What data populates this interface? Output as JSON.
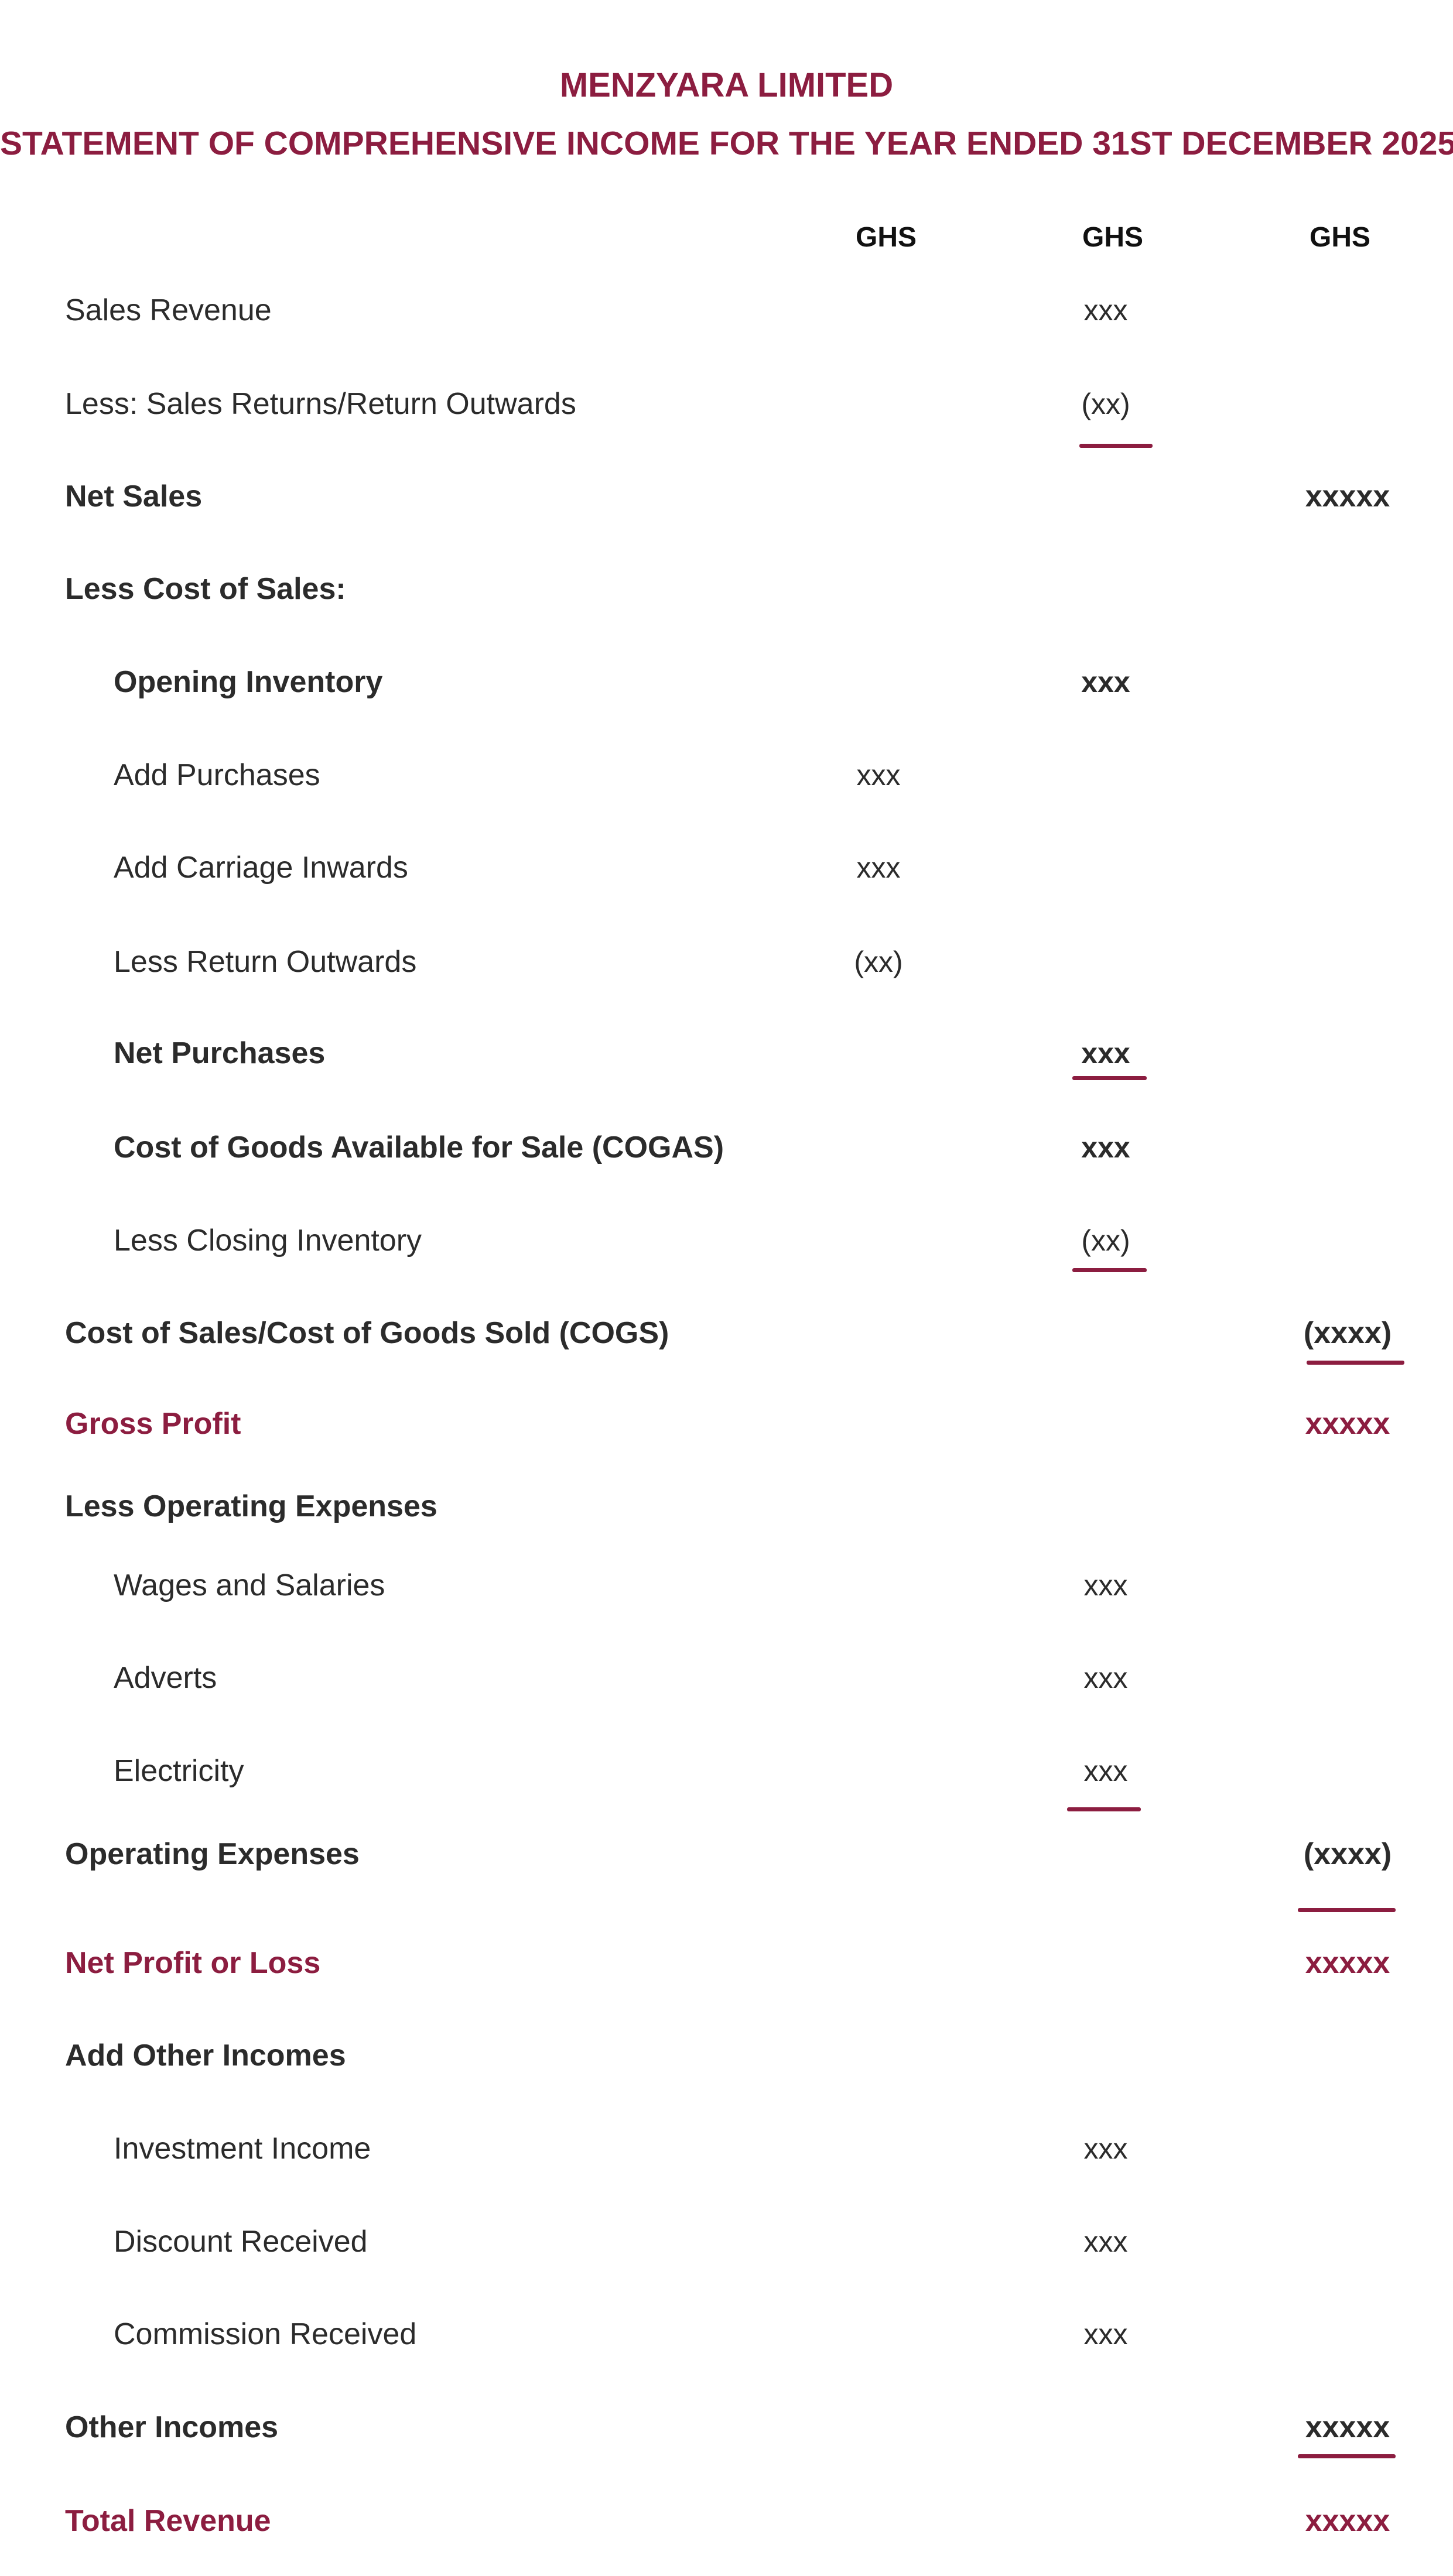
{
  "header": {
    "company": "MENZYARA LIMITED",
    "statement": "STATEMENT OF COMPREHENSIVE INCOME FOR THE YEAR ENDED 31ST DECEMBER 2025",
    "columns": [
      "GHS",
      "GHS",
      "GHS"
    ]
  },
  "colors": {
    "accent": "#8c1d40",
    "text": "#2b2b2b"
  },
  "rows": [
    {
      "label": "Sales Revenue",
      "col2": "xxx"
    },
    {
      "label": "Less: Sales Returns/Return Outwards",
      "col2": "(xx)"
    },
    {
      "label": "Net Sales",
      "col3": "xxxxx"
    },
    {
      "label": "Less Cost of Sales:"
    },
    {
      "label": "Opening Inventory",
      "col2": "xxx"
    },
    {
      "label": "Add Purchases",
      "col1": "xxx"
    },
    {
      "label": "Add Carriage Inwards",
      "col1": "xxx"
    },
    {
      "label": "Less Return Outwards",
      "col1": "(xx)"
    },
    {
      "label": "Net Purchases",
      "col2": "xxx"
    },
    {
      "label": "Cost of Goods Available for Sale (COGAS)",
      "col2": "xxx"
    },
    {
      "label": "Less Closing Inventory",
      "col2": "(xx)"
    },
    {
      "label": "Cost of Sales/Cost of Goods Sold (COGS)",
      "col3": "(xxxx)"
    },
    {
      "label": "Gross Profit",
      "col3": "xxxxx"
    },
    {
      "label": "Less Operating Expenses"
    },
    {
      "label": "Wages and Salaries",
      "col2": "xxx"
    },
    {
      "label": "Adverts",
      "col2": "xxx"
    },
    {
      "label": "Electricity",
      "col2": "xxx"
    },
    {
      "label": "Operating Expenses",
      "col3": "(xxxx)"
    },
    {
      "label": "Net Profit or Loss",
      "col3": "xxxxx"
    },
    {
      "label": "Add Other Incomes"
    },
    {
      "label": "Investment Income",
      "col2": "xxx"
    },
    {
      "label": "Discount Received",
      "col2": "xxx"
    },
    {
      "label": "Commission Received",
      "col2": "xxx"
    },
    {
      "label": "Other Incomes",
      "col3": "xxxxx"
    },
    {
      "label": "Total Revenue",
      "col3": "xxxxx"
    }
  ]
}
